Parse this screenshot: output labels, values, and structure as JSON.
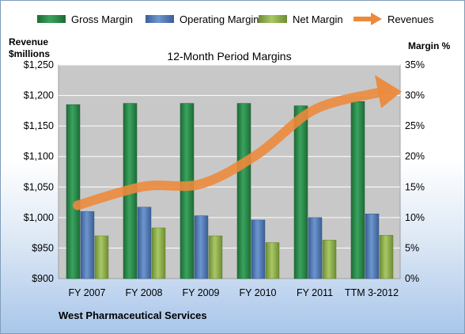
{
  "chart_data": {
    "type": "bar",
    "title": "12-Month Period Margins",
    "footer": "West Pharmaceutical Services",
    "categories": [
      "FY 2007",
      "FY 2008",
      "FY 2009",
      "FY 2010",
      "FY 2011",
      "TTM 3-2012"
    ],
    "left_axis": {
      "label_line1": "Revenue",
      "label_line2": "$millions",
      "range": [
        900,
        1250
      ],
      "ticks": [
        "$900",
        "$950",
        "$1,000",
        "$1,050",
        "$1,100",
        "$1,150",
        "$1,200",
        "$1,250"
      ]
    },
    "right_axis": {
      "label": "Margin %",
      "range": [
        0,
        35
      ],
      "ticks": [
        "0%",
        "5%",
        "10%",
        "15%",
        "20%",
        "25%",
        "30%",
        "35%"
      ]
    },
    "series": [
      {
        "name": "Gross Margin",
        "axis": "right",
        "values": [
          28.5,
          28.7,
          28.7,
          28.7,
          28.3,
          29.0
        ]
      },
      {
        "name": "Operating Margin",
        "axis": "right",
        "values": [
          11.0,
          11.7,
          10.3,
          9.6,
          10.0,
          10.6
        ]
      },
      {
        "name": "Net Margin",
        "axis": "right",
        "values": [
          7.0,
          8.3,
          7.0,
          5.9,
          6.3,
          7.1
        ]
      }
    ],
    "revenue_trend": {
      "name": "Revenues",
      "axis": "left",
      "type": "arrow",
      "values": [
        1020,
        1051,
        1055,
        1104,
        1177,
        1205
      ]
    },
    "grid": true,
    "legend_position": "top",
    "colors": {
      "Gross Margin": "#2a8a4a",
      "Operating Margin": "#4f7ab8",
      "Net Margin": "#8fb04a",
      "Revenues": "#ec8a3c",
      "plot_background": "#c8c8c8"
    }
  }
}
